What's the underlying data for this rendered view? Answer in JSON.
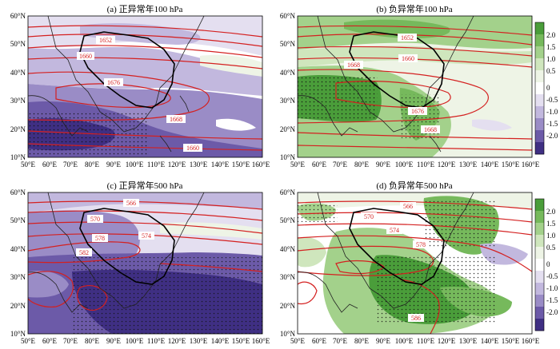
{
  "panels": [
    {
      "id": "a",
      "title": "(a) 正异常年100 hPa",
      "level_hpa": 100,
      "contours": [
        "1652",
        "1660",
        "1676",
        "1668",
        "1660"
      ]
    },
    {
      "id": "b",
      "title": "(b) 负异常年100 hPa",
      "level_hpa": 100,
      "contours": [
        "1652",
        "1660",
        "1668",
        "1676",
        "1668"
      ]
    },
    {
      "id": "c",
      "title": "(c) 正异常年500 hPa",
      "level_hpa": 500,
      "contours": [
        "566",
        "570",
        "574",
        "578",
        "582"
      ]
    },
    {
      "id": "d",
      "title": "(d) 负异常年500 hPa",
      "level_hpa": 500,
      "contours": [
        "566",
        "570",
        "574",
        "578",
        "586"
      ]
    }
  ],
  "lat_labels": [
    "60°N",
    "50°N",
    "40°N",
    "30°N",
    "20°N",
    "10°N"
  ],
  "lon_labels": [
    "50°E",
    "60°E",
    "70°E",
    "80°E",
    "90°E",
    "100°E",
    "110°E",
    "120°E",
    "130°E",
    "140°E",
    "150°E",
    "160°E"
  ],
  "colorbar": {
    "labels": [
      "2.0",
      "1.5",
      "1.0",
      "0.5",
      "0",
      "-0.5",
      "-1.0",
      "-1.5",
      "-2.0"
    ],
    "colors": [
      "#4a9d3a",
      "#76b95c",
      "#a3d18b",
      "#cfe6bd",
      "#eef4e6",
      "#ffffff",
      "#e4dff0",
      "#c2b8de",
      "#9a8cc6",
      "#6c5aa8",
      "#3f2f83"
    ]
  },
  "colors": {
    "contour": "#d42020",
    "positive_shade": "#8fc070",
    "negative_shade": "#8c7fc0",
    "map_bg": "#ffffff"
  }
}
